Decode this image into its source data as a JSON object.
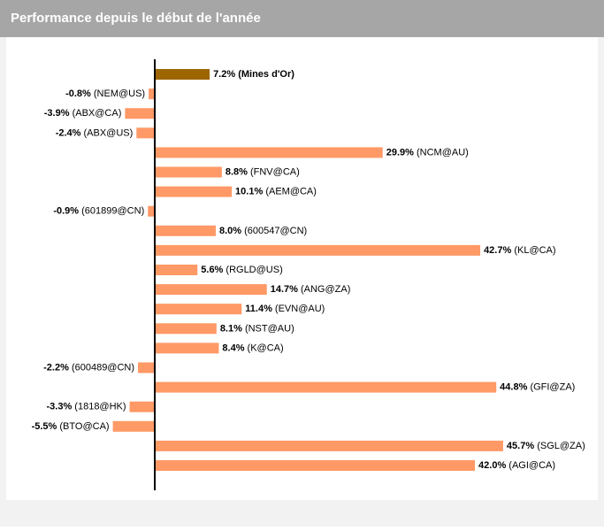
{
  "chart_data": {
    "type": "hbar",
    "title": "Performance depuis le début de l'année",
    "categories": [
      "(Mines d'Or)",
      "(NEM@US)",
      "(ABX@CA)",
      "(ABX@US)",
      "(NCM@AU)",
      "(FNV@CA)",
      "(AEM@CA)",
      "(601899@CN)",
      "(600547@CN)",
      "(KL@CA)",
      "(RGLD@US)",
      "(ANG@ZA)",
      "(EVN@AU)",
      "(NST@AU)",
      "(K@CA)",
      "(600489@CN)",
      "(GFI@ZA)",
      "(1818@HK)",
      "(BTO@CA)",
      "(SGL@ZA)",
      "(AGI@CA)"
    ],
    "values": [
      7.2,
      -0.8,
      -3.9,
      -2.4,
      29.9,
      8.8,
      10.1,
      -0.9,
      8.0,
      42.7,
      5.6,
      14.7,
      11.4,
      8.1,
      8.4,
      -2.2,
      44.8,
      -3.3,
      -5.5,
      45.7,
      42.0
    ],
    "value_labels": [
      "7.2%",
      "-0.8%",
      "-3.9%",
      "-2.4%",
      "29.9%",
      "8.8%",
      "10.1%",
      "-0.9%",
      "8.0%",
      "42.7%",
      "5.6%",
      "14.7%",
      "11.4%",
      "8.1%",
      "8.4%",
      "-2.2%",
      "44.8%",
      "-3.3%",
      "-5.5%",
      "45.7%",
      "42.0%"
    ],
    "colors": [
      "#9c6500",
      "#ff9966",
      "#ff9966",
      "#ff9966",
      "#ff9966",
      "#ff9966",
      "#ff9966",
      "#ff9966",
      "#ff9966",
      "#ff9966",
      "#ff9966",
      "#ff9966",
      "#ff9966",
      "#ff9966",
      "#ff9966",
      "#ff9966",
      "#ff9966",
      "#ff9966",
      "#ff9966",
      "#ff9966",
      "#ff9966"
    ]
  }
}
